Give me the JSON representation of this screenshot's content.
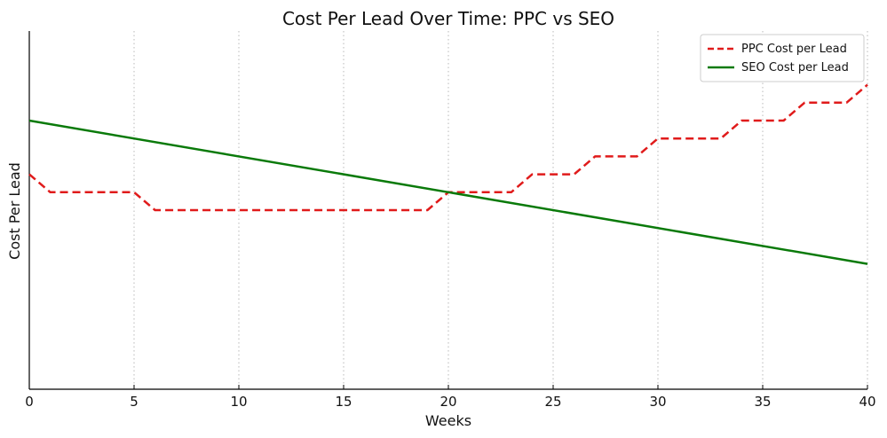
{
  "chart_data": {
    "type": "line",
    "title": "Cost Per Lead Over Time: PPC vs SEO",
    "xlabel": "Weeks",
    "ylabel": "Cost Per Lead",
    "xlim": [
      0,
      40
    ],
    "ylim": [
      0,
      10
    ],
    "x_ticks": [
      0,
      5,
      10,
      15,
      20,
      25,
      30,
      35,
      40
    ],
    "x_tick_labels": [
      "0",
      "5",
      "10",
      "15",
      "20",
      "25",
      "30",
      "35",
      "40"
    ],
    "grid": "vertical dotted",
    "legend_position": "top-right",
    "series": [
      {
        "name": "PPC Cost per Lead",
        "color": "#e01b1b",
        "style": "dashed",
        "x": [
          0,
          1,
          2,
          3,
          4,
          5,
          6,
          7,
          8,
          9,
          10,
          11,
          12,
          13,
          14,
          15,
          16,
          17,
          18,
          19,
          20,
          21,
          22,
          23,
          24,
          25,
          26,
          27,
          28,
          29,
          30,
          31,
          32,
          33,
          34,
          35,
          36,
          37,
          38,
          39,
          40
        ],
        "values": [
          6.0,
          5.5,
          5.5,
          5.5,
          5.5,
          5.5,
          5.0,
          5.0,
          5.0,
          5.0,
          5.0,
          5.0,
          5.0,
          5.0,
          5.0,
          5.0,
          5.0,
          5.0,
          5.0,
          5.0,
          5.5,
          5.5,
          5.5,
          5.5,
          6.0,
          6.0,
          6.0,
          6.5,
          6.5,
          6.5,
          7.0,
          7.0,
          7.0,
          7.0,
          7.5,
          7.5,
          7.5,
          8.0,
          8.0,
          8.0,
          8.5
        ]
      },
      {
        "name": "SEO Cost per Lead",
        "color": "#0a7a0a",
        "style": "solid",
        "x": [
          0,
          40
        ],
        "values": [
          7.5,
          3.5
        ]
      }
    ]
  }
}
